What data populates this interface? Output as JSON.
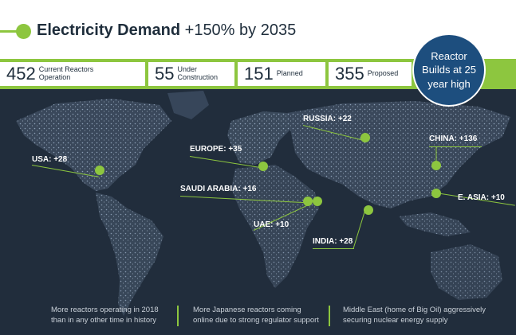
{
  "header": {
    "title_bold": "Electricity Demand",
    "title_rest": " +150% by 2035"
  },
  "stats": [
    {
      "value": "452",
      "label": "Current Reactors Operation"
    },
    {
      "value": "55",
      "label": "Under Construction"
    },
    {
      "value": "151",
      "label": "Planned"
    },
    {
      "value": "355",
      "label": "Proposed"
    }
  ],
  "badge": {
    "text": "Reactor Builds at 25 year high"
  },
  "regions": {
    "usa": "USA: +28",
    "europe": "EUROPE: +35",
    "russia": "RUSSIA: +22",
    "china": "CHINA: +136",
    "saudi": "SAUDI ARABIA: +16",
    "uae": "UAE: +10",
    "india": "INDIA: +28",
    "east_asia": "E. ASIA: +10"
  },
  "footnotes": [
    "More reactors operating in 2018 than in any other time in history",
    "More Japanese reactors coming online due to strong regulator support",
    "Middle East (home of Big Oil) aggressively securing nuclear energy supply"
  ],
  "colors": {
    "accent": "#8dc63f",
    "map_bg": "#212d3c",
    "badge": "#1d4e7e"
  }
}
